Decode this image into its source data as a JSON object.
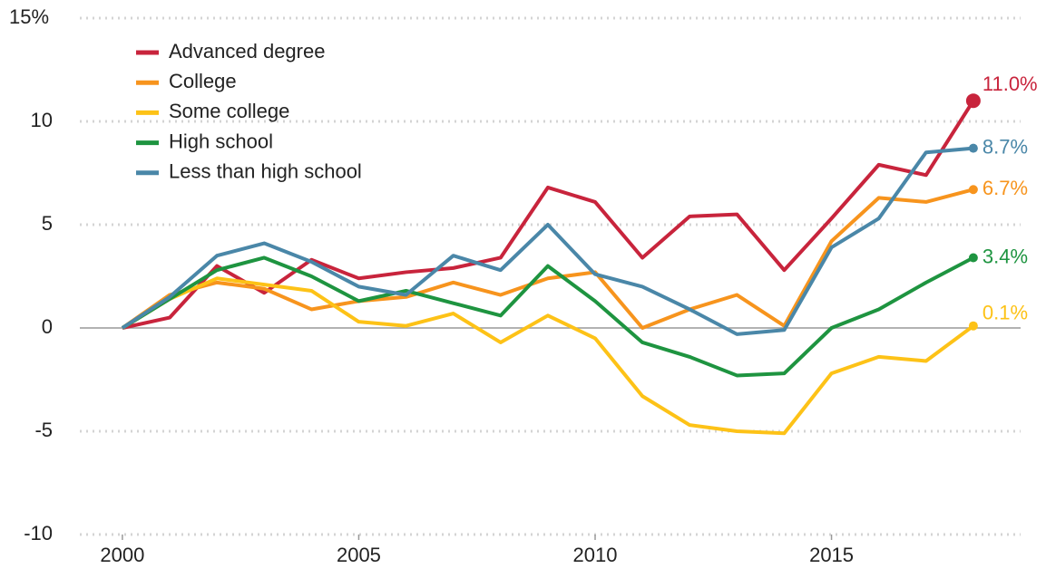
{
  "chart_data": {
    "type": "line",
    "x": [
      2000,
      2001,
      2002,
      2003,
      2004,
      2005,
      2006,
      2007,
      2008,
      2009,
      2010,
      2011,
      2012,
      2013,
      2014,
      2015,
      2016,
      2017,
      2018
    ],
    "xlim": [
      1999.1,
      2019
    ],
    "xticks": [
      2000,
      2005,
      2010,
      2015
    ],
    "ylim": [
      -10,
      15
    ],
    "yticks": [
      -10,
      -5,
      0,
      5,
      {
        "value": 15,
        "label": "15%"
      },
      10
    ],
    "grid": true,
    "legend": "top-left",
    "series": [
      {
        "name": "Advanced degree",
        "color": "#c8243c",
        "values": [
          0,
          0.5,
          3.0,
          1.7,
          3.3,
          2.4,
          2.7,
          2.9,
          3.4,
          6.8,
          6.1,
          3.4,
          5.4,
          5.5,
          2.8,
          5.3,
          7.9,
          7.4,
          11.0
        ],
        "value_labels": [
          null,
          null,
          null,
          null,
          null,
          null,
          null,
          null,
          null,
          null,
          null,
          null,
          null,
          null,
          null,
          null,
          null,
          null,
          "11.0%"
        ]
      },
      {
        "name": "College",
        "color": "#f7941d",
        "values": [
          0,
          1.6,
          2.2,
          1.9,
          0.9,
          1.3,
          1.5,
          2.2,
          1.6,
          2.4,
          2.7,
          0.0,
          0.9,
          1.6,
          0.1,
          4.2,
          6.3,
          6.1,
          6.7
        ],
        "value_labels": [
          null,
          null,
          null,
          null,
          null,
          null,
          null,
          null,
          null,
          null,
          null,
          null,
          null,
          null,
          null,
          null,
          null,
          null,
          "6.7%"
        ]
      },
      {
        "name": "Some college",
        "color": "#fdc217",
        "values": [
          0,
          1.4,
          2.4,
          2.1,
          1.8,
          0.3,
          0.1,
          0.7,
          -0.7,
          0.6,
          -0.5,
          -3.3,
          -4.7,
          -5.0,
          -5.1,
          -2.2,
          -1.4,
          -1.6,
          0.1
        ],
        "value_labels": [
          null,
          null,
          null,
          null,
          null,
          null,
          null,
          null,
          null,
          null,
          null,
          null,
          null,
          null,
          null,
          null,
          null,
          null,
          "0.1%"
        ]
      },
      {
        "name": "High school",
        "color": "#1e9440",
        "values": [
          0,
          1.4,
          2.8,
          3.4,
          2.5,
          1.3,
          1.8,
          1.2,
          0.6,
          3.0,
          1.3,
          -0.7,
          -1.4,
          -2.3,
          -2.2,
          0.0,
          0.9,
          2.2,
          3.4
        ],
        "value_labels": [
          null,
          null,
          null,
          null,
          null,
          null,
          null,
          null,
          null,
          null,
          null,
          null,
          null,
          null,
          null,
          null,
          null,
          null,
          "3.4%"
        ]
      },
      {
        "name": "Less than high school",
        "color": "#4a87a8",
        "values": [
          0,
          1.5,
          3.5,
          4.1,
          3.2,
          2.0,
          1.6,
          3.5,
          2.8,
          5.0,
          2.6,
          2.0,
          0.9,
          -0.3,
          -0.1,
          3.9,
          5.3,
          8.5,
          8.7
        ],
        "value_labels": [
          null,
          null,
          null,
          null,
          null,
          null,
          null,
          null,
          null,
          null,
          null,
          null,
          null,
          null,
          null,
          null,
          null,
          null,
          "8.7%"
        ]
      }
    ]
  }
}
